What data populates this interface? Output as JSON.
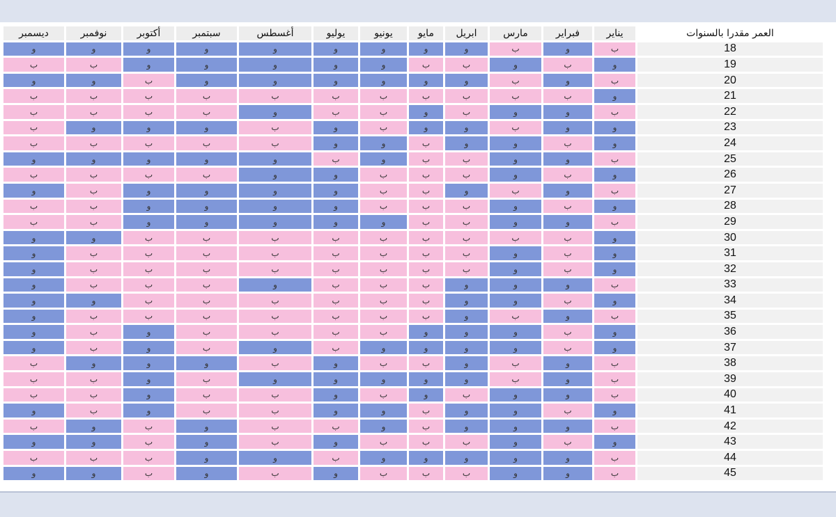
{
  "colors": {
    "b": "#f7bfdd",
    "w": "#7f97d9",
    "header_bg": "#ededed",
    "age_bg": "#f1f1f1"
  },
  "header": {
    "age_label": "العمر مقدرا بالسنوات",
    "months": [
      "ديسمبر",
      "نوفمبر",
      "أكتوبر",
      "سبتمبر",
      "أغسطس",
      "يوليو",
      "يونيو",
      "مايو",
      "ابريل",
      "مارس",
      "فبراير",
      "يناير"
    ]
  },
  "table": {
    "rows": [
      {
        "age": "18",
        "cells": [
          "و",
          "و",
          "و",
          "و",
          "و",
          "و",
          "و",
          "و",
          "و",
          "ب",
          "و",
          "ب"
        ]
      },
      {
        "age": "19",
        "cells": [
          "ب",
          "ب",
          "و",
          "و",
          "و",
          "و",
          "و",
          "ب",
          "ب",
          "و",
          "ب",
          "و"
        ]
      },
      {
        "age": "20",
        "cells": [
          "و",
          "و",
          "ب",
          "و",
          "و",
          "و",
          "و",
          "و",
          "و",
          "ب",
          "و",
          "ب"
        ]
      },
      {
        "age": "21",
        "cells": [
          "ب",
          "ب",
          "ب",
          "ب",
          "ب",
          "ب",
          "ب",
          "ب",
          "ب",
          "ب",
          "ب",
          "و"
        ]
      },
      {
        "age": "22",
        "cells": [
          "ب",
          "ب",
          "ب",
          "ب",
          "و",
          "ب",
          "ب",
          "و",
          "ب",
          "و",
          "و",
          "ب"
        ]
      },
      {
        "age": "23",
        "cells": [
          "ب",
          "و",
          "و",
          "و",
          "ب",
          "و",
          "ب",
          "و",
          "و",
          "ب",
          "و",
          "و"
        ]
      },
      {
        "age": "24",
        "cells": [
          "ب",
          "ب",
          "ب",
          "ب",
          "ب",
          "و",
          "و",
          "ب",
          "و",
          "و",
          "ب",
          "و"
        ]
      },
      {
        "age": "25",
        "cells": [
          "و",
          "و",
          "و",
          "و",
          "و",
          "ب",
          "و",
          "ب",
          "ب",
          "و",
          "و",
          "ب"
        ]
      },
      {
        "age": "26",
        "cells": [
          "ب",
          "ب",
          "ب",
          "ب",
          "و",
          "و",
          "ب",
          "ب",
          "ب",
          "و",
          "ب",
          "و"
        ]
      },
      {
        "age": "27",
        "cells": [
          "و",
          "ب",
          "و",
          "و",
          "و",
          "و",
          "ب",
          "ب",
          "و",
          "ب",
          "و",
          "ب"
        ]
      },
      {
        "age": "28",
        "cells": [
          "ب",
          "ب",
          "و",
          "و",
          "و",
          "و",
          "ب",
          "ب",
          "ب",
          "و",
          "ب",
          "و"
        ]
      },
      {
        "age": "29",
        "cells": [
          "ب",
          "ب",
          "و",
          "و",
          "و",
          "و",
          "و",
          "ب",
          "ب",
          "و",
          "و",
          "ب"
        ]
      },
      {
        "age": "30",
        "cells": [
          "و",
          "و",
          "ب",
          "ب",
          "ب",
          "ب",
          "ب",
          "ب",
          "ب",
          "ب",
          "ب",
          "و"
        ]
      },
      {
        "age": "31",
        "cells": [
          "و",
          "ب",
          "ب",
          "ب",
          "ب",
          "ب",
          "ب",
          "ب",
          "ب",
          "و",
          "ب",
          "و"
        ]
      },
      {
        "age": "32",
        "cells": [
          "و",
          "ب",
          "ب",
          "ب",
          "ب",
          "ب",
          "ب",
          "ب",
          "ب",
          "و",
          "ب",
          "و"
        ]
      },
      {
        "age": "33",
        "cells": [
          "و",
          "ب",
          "ب",
          "ب",
          "و",
          "ب",
          "ب",
          "ب",
          "و",
          "و",
          "و",
          "ب"
        ]
      },
      {
        "age": "34",
        "cells": [
          "و",
          "و",
          "ب",
          "ب",
          "ب",
          "ب",
          "ب",
          "ب",
          "و",
          "و",
          "ب",
          "و"
        ]
      },
      {
        "age": "35",
        "cells": [
          "و",
          "ب",
          "ب",
          "ب",
          "ب",
          "ب",
          "ب",
          "ب",
          "و",
          "ب",
          "و",
          "ب"
        ]
      },
      {
        "age": "36",
        "cells": [
          "و",
          "ب",
          "و",
          "ب",
          "ب",
          "ب",
          "ب",
          "و",
          "و",
          "و",
          "ب",
          "و"
        ]
      },
      {
        "age": "37",
        "cells": [
          "و",
          "ب",
          "و",
          "ب",
          "و",
          "ب",
          "و",
          "و",
          "و",
          "و",
          "ب",
          "و"
        ]
      },
      {
        "age": "38",
        "cells": [
          "ب",
          "و",
          "و",
          "و",
          "ب",
          "و",
          "ب",
          "ب",
          "و",
          "ب",
          "و",
          "ب"
        ]
      },
      {
        "age": "39",
        "cells": [
          "ب",
          "ب",
          "و",
          "ب",
          "و",
          "و",
          "و",
          "و",
          "و",
          "ب",
          "و",
          "ب"
        ]
      },
      {
        "age": "40",
        "cells": [
          "ب",
          "ب",
          "و",
          "ب",
          "ب",
          "و",
          "ب",
          "و",
          "ب",
          "و",
          "و",
          "ب"
        ]
      },
      {
        "age": "41",
        "cells": [
          "و",
          "ب",
          "و",
          "ب",
          "ب",
          "و",
          "و",
          "ب",
          "و",
          "و",
          "ب",
          "و"
        ]
      },
      {
        "age": "42",
        "cells": [
          "ب",
          "و",
          "ب",
          "و",
          "ب",
          "ب",
          "و",
          "ب",
          "و",
          "و",
          "و",
          "ب"
        ]
      },
      {
        "age": "43",
        "cells": [
          "و",
          "و",
          "ب",
          "و",
          "ب",
          "و",
          "ب",
          "ب",
          "ب",
          "و",
          "ب",
          "و"
        ]
      },
      {
        "age": "44",
        "cells": [
          "ب",
          "ب",
          "ب",
          "و",
          "و",
          "ب",
          "و",
          "و",
          "و",
          "و",
          "و",
          "ب"
        ]
      },
      {
        "age": "45",
        "cells": [
          "و",
          "و",
          "ب",
          "و",
          "ب",
          "و",
          "ب",
          "ب",
          "ب",
          "و",
          "و",
          "ب"
        ]
      }
    ]
  }
}
